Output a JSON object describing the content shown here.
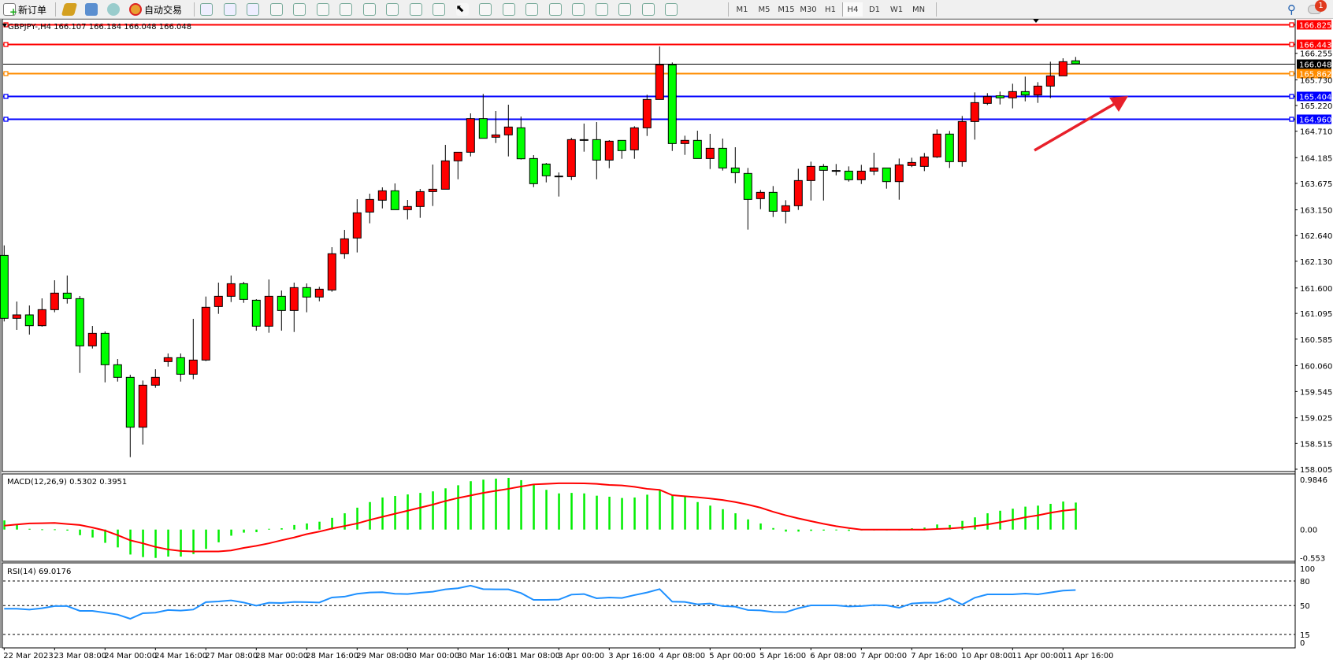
{
  "toolbar": {
    "new_order": "新订单",
    "auto_trading": "自动交易",
    "icons": [
      "new-order-icon",
      "gold-icon",
      "history-icon",
      "signals-icon",
      "auto-trading-icon",
      "bar-chart-icon",
      "candlestick-icon",
      "line-chart-icon",
      "zoom-in-icon",
      "zoom-out-icon",
      "tile-windows-icon",
      "auto-scroll-icon",
      "chart-shift-icon",
      "indicators-icon",
      "periods-icon",
      "templates-icon",
      "cursor-icon",
      "crosshair-icon",
      "vertical-line-icon",
      "horizontal-line-icon",
      "trendline-icon",
      "fibo-icon",
      "fibo-fan-icon",
      "text-icon",
      "text-label-icon",
      "arrows-icon"
    ],
    "timeframes": [
      "M1",
      "M5",
      "M15",
      "M30",
      "H1",
      "H4",
      "D1",
      "W1",
      "MN"
    ],
    "active_timeframe": "H4",
    "notification_count": "1"
  },
  "chart_header": "GBPJPY-,H4  166.107 166.184 166.048 166.048",
  "macd_label": "MACD(12,26,9) 0.5302 0.3951",
  "rsi_label": "RSI(14) 69.0176",
  "chart_data": {
    "type": "candlestick",
    "symbol": "GBPJPY-",
    "timeframe": "H4",
    "colors": {
      "bull": "#ff0000",
      "bear": "#00ff00",
      "macd_hist": "#00ee00",
      "signal": "#ff0000",
      "rsi": "#1e90ff"
    },
    "price_axis": [
      "166.255",
      "165.730",
      "165.220",
      "164.710",
      "164.185",
      "163.675",
      "163.150",
      "162.640",
      "162.130",
      "161.600",
      "161.095",
      "160.585",
      "160.060",
      "159.545",
      "159.025",
      "158.515",
      "158.005"
    ],
    "hlines": [
      {
        "price": "166.825",
        "color": "#ff0000"
      },
      {
        "price": "166.443",
        "color": "#ff0000"
      },
      {
        "price": "166.048",
        "color": "#000000"
      },
      {
        "price": "165.862",
        "color": "#ff8c00"
      },
      {
        "price": "165.404",
        "color": "#0000ff"
      },
      {
        "price": "164.960",
        "color": "#0000ff"
      }
    ],
    "time_labels": [
      "22 Mar 2023",
      "23 Mar 08:00",
      "24 Mar 00:00",
      "24 Mar 16:00",
      "27 Mar 08:00",
      "28 Mar 00:00",
      "28 Mar 16:00",
      "29 Mar 08:00",
      "30 Mar 00:00",
      "30 Mar 16:00",
      "31 Mar 08:00",
      "3 Apr 00:00",
      "3 Apr 16:00",
      "4 Apr 08:00",
      "5 Apr 00:00",
      "5 Apr 16:00",
      "6 Apr 08:00",
      "7 Apr 00:00",
      "7 Apr 16:00",
      "10 Apr 08:00",
      "11 Apr 00:00",
      "11 Apr 16:00"
    ],
    "ohlc": [
      [
        162.247,
        162.445,
        160.936,
        160.998
      ],
      [
        160.998,
        161.331,
        160.769,
        161.066
      ],
      [
        161.066,
        161.253,
        160.675,
        160.852
      ],
      [
        160.852,
        161.394,
        160.832,
        161.17
      ],
      [
        161.17,
        161.753,
        161.118,
        161.498
      ],
      [
        161.498,
        161.847,
        161.29,
        161.388
      ],
      [
        161.388,
        161.441,
        159.915,
        160.451
      ],
      [
        160.451,
        160.847,
        160.399,
        160.701
      ],
      [
        160.701,
        160.738,
        159.728,
        160.077
      ],
      [
        160.077,
        160.191,
        159.743,
        159.827
      ],
      [
        159.827,
        159.879,
        158.244,
        158.838
      ],
      [
        158.838,
        159.764,
        158.494,
        159.671
      ],
      [
        159.671,
        159.988,
        159.619,
        159.827
      ],
      [
        160.139,
        160.3,
        160.04,
        160.217
      ],
      [
        160.217,
        160.3,
        159.743,
        159.889
      ],
      [
        159.889,
        160.988,
        159.79,
        160.17
      ],
      [
        160.17,
        161.43,
        160.15,
        161.217
      ],
      [
        161.232,
        161.706,
        161.087,
        161.435
      ],
      [
        161.435,
        161.847,
        161.321,
        161.685
      ],
      [
        161.685,
        161.722,
        161.305,
        161.373
      ],
      [
        161.357,
        161.378,
        160.753,
        160.842
      ],
      [
        160.842,
        161.769,
        160.712,
        161.435
      ],
      [
        161.435,
        161.55,
        160.753,
        161.154
      ],
      [
        161.154,
        161.706,
        160.727,
        161.607
      ],
      [
        161.607,
        161.69,
        161.118,
        161.42
      ],
      [
        161.42,
        161.623,
        161.336,
        161.576
      ],
      [
        161.56,
        162.409,
        161.524,
        162.279
      ],
      [
        162.279,
        162.752,
        162.18,
        162.575
      ],
      [
        162.591,
        163.361,
        162.305,
        163.091
      ],
      [
        163.106,
        163.471,
        162.883,
        163.356
      ],
      [
        163.341,
        163.596,
        163.179,
        163.528
      ],
      [
        163.528,
        163.674,
        163.153,
        163.153
      ],
      [
        163.153,
        163.346,
        162.961,
        163.216
      ],
      [
        163.216,
        163.564,
        162.992,
        163.512
      ],
      [
        163.512,
        164.049,
        163.226,
        163.559
      ],
      [
        163.559,
        164.439,
        163.559,
        164.122
      ],
      [
        164.122,
        164.293,
        163.757,
        164.293
      ],
      [
        164.293,
        165.064,
        164.21,
        164.96
      ],
      [
        164.96,
        165.449,
        164.569,
        164.569
      ],
      [
        164.59,
        165.111,
        164.476,
        164.637
      ],
      [
        164.637,
        165.236,
        164.21,
        164.793
      ],
      [
        164.778,
        165.001,
        164.148,
        164.163
      ],
      [
        164.168,
        164.236,
        163.601,
        163.669
      ],
      [
        164.059,
        164.08,
        163.695,
        163.825
      ],
      [
        163.82,
        163.892,
        163.414,
        163.815
      ],
      [
        163.809,
        164.58,
        163.741,
        164.543
      ],
      [
        164.543,
        164.861,
        164.304,
        164.543
      ],
      [
        164.543,
        164.892,
        163.757,
        164.137
      ],
      [
        164.137,
        164.533,
        163.976,
        164.512
      ],
      [
        164.528,
        164.528,
        164.163,
        164.325
      ],
      [
        164.34,
        164.809,
        164.163,
        164.777
      ],
      [
        164.777,
        165.433,
        164.616,
        165.34
      ],
      [
        165.34,
        166.391,
        165.34,
        166.027
      ],
      [
        166.027,
        166.074,
        164.319,
        164.465
      ],
      [
        164.465,
        164.621,
        164.241,
        164.528
      ],
      [
        164.528,
        164.72,
        164.168,
        164.168
      ],
      [
        164.168,
        164.658,
        163.96,
        164.371
      ],
      [
        164.371,
        164.564,
        163.929,
        163.981
      ],
      [
        163.981,
        164.392,
        163.679,
        163.887
      ],
      [
        163.872,
        163.981,
        162.758,
        163.356
      ],
      [
        163.372,
        163.544,
        163.164,
        163.497
      ],
      [
        163.497,
        163.622,
        163.008,
        163.122
      ],
      [
        163.122,
        163.341,
        162.882,
        163.231
      ],
      [
        163.231,
        163.965,
        163.148,
        163.731
      ],
      [
        163.731,
        164.106,
        163.335,
        164.012
      ],
      [
        164.012,
        164.059,
        163.335,
        163.934
      ],
      [
        163.93,
        164.059,
        163.835,
        163.929
      ],
      [
        163.918,
        164.012,
        163.71,
        163.747
      ],
      [
        163.747,
        164.043,
        163.663,
        163.918
      ],
      [
        163.918,
        164.283,
        163.84,
        163.981
      ],
      [
        163.981,
        163.981,
        163.57,
        163.71
      ],
      [
        163.71,
        164.168,
        163.351,
        164.043
      ],
      [
        164.028,
        164.184,
        163.997,
        164.09
      ],
      [
        164.012,
        164.278,
        163.918,
        164.2
      ],
      [
        164.2,
        164.746,
        164.179,
        164.653
      ],
      [
        164.653,
        164.715,
        163.981,
        164.106
      ],
      [
        164.106,
        165.012,
        164.007,
        164.902
      ],
      [
        164.902,
        165.48,
        164.543,
        165.277
      ],
      [
        165.262,
        165.465,
        165.23,
        165.397
      ],
      [
        165.413,
        165.496,
        165.241,
        165.371
      ],
      [
        165.371,
        165.652,
        165.163,
        165.496
      ],
      [
        165.496,
        165.793,
        165.303,
        165.428
      ],
      [
        165.428,
        165.683,
        165.272,
        165.605
      ],
      [
        165.605,
        166.089,
        165.366,
        165.808
      ],
      [
        165.808,
        166.157,
        165.808,
        166.089
      ],
      [
        166.107,
        166.184,
        166.048,
        166.048
      ]
    ],
    "macd_axis": [
      "0.9846",
      "0.00",
      "-0.553"
    ],
    "macd_hist": [
      0.18,
      0.09,
      0.015,
      0.005,
      0.005,
      -0.02,
      -0.11,
      -0.155,
      -0.26,
      -0.35,
      -0.49,
      -0.54,
      -0.557,
      -0.53,
      -0.53,
      -0.48,
      -0.38,
      -0.25,
      -0.12,
      -0.06,
      -0.05,
      0.015,
      0.026,
      0.09,
      0.12,
      0.155,
      0.23,
      0.32,
      0.43,
      0.54,
      0.63,
      0.66,
      0.69,
      0.72,
      0.75,
      0.81,
      0.87,
      0.95,
      0.98,
      1.0,
      1.015,
      0.97,
      0.88,
      0.78,
      0.71,
      0.72,
      0.71,
      0.665,
      0.645,
      0.62,
      0.63,
      0.685,
      0.77,
      0.67,
      0.645,
      0.54,
      0.47,
      0.4,
      0.32,
      0.2,
      0.12,
      0.03,
      -0.04,
      -0.04,
      -0.025,
      -0.02,
      -0.005,
      -0.025,
      0.0,
      0.0,
      0.0,
      0.0,
      0.025,
      0.04,
      0.1,
      0.09,
      0.17,
      0.24,
      0.32,
      0.37,
      0.41,
      0.45,
      0.47,
      0.505,
      0.55,
      0.5302
    ],
    "macd_signal": [
      0.077,
      0.1,
      0.12,
      0.125,
      0.13,
      0.11,
      0.09,
      0.04,
      -0.02,
      -0.11,
      -0.21,
      -0.27,
      -0.34,
      -0.39,
      -0.42,
      -0.43,
      -0.43,
      -0.43,
      -0.41,
      -0.36,
      -0.32,
      -0.27,
      -0.21,
      -0.155,
      -0.09,
      -0.04,
      0.02,
      0.07,
      0.12,
      0.19,
      0.25,
      0.31,
      0.37,
      0.43,
      0.49,
      0.56,
      0.62,
      0.67,
      0.72,
      0.76,
      0.8,
      0.845,
      0.887,
      0.897,
      0.91,
      0.91,
      0.907,
      0.897,
      0.876,
      0.866,
      0.84,
      0.8,
      0.78,
      0.675,
      0.655,
      0.634,
      0.61,
      0.58,
      0.54,
      0.49,
      0.43,
      0.35,
      0.28,
      0.22,
      0.165,
      0.113,
      0.067,
      0.03,
      0.0,
      0.0,
      0.0,
      0.0,
      0.0,
      0.0,
      0.01,
      0.02,
      0.04,
      0.067,
      0.1,
      0.144,
      0.19,
      0.24,
      0.28,
      0.33,
      0.37,
      0.3951
    ],
    "rsi_axis": [
      "100",
      "80",
      "50",
      "15",
      "0"
    ],
    "rsi_levels": [
      80,
      50,
      15
    ],
    "rsi": [
      46.2,
      46.2,
      45.2,
      46.8,
      49.4,
      49.4,
      43.6,
      43.6,
      41.4,
      39.1,
      34,
      40.7,
      41.4,
      44.6,
      43.9,
      45.2,
      54.2,
      55.1,
      56.4,
      53.8,
      50,
      53.5,
      53.2,
      54.5,
      54.2,
      53.8,
      59.9,
      60.9,
      64.4,
      66,
      66.3,
      64.4,
      64.1,
      65.7,
      66.9,
      69.8,
      71.1,
      74.3,
      70.1,
      69.8,
      69.8,
      65.3,
      57,
      57,
      57.3,
      63.4,
      64.1,
      58.9,
      59.9,
      59.3,
      62.8,
      66,
      70.1,
      54.8,
      54.5,
      51.6,
      52.6,
      49.4,
      48.7,
      44.6,
      44.2,
      42.3,
      42,
      46.8,
      50.3,
      50.3,
      50.3,
      49,
      49.4,
      50.6,
      50.3,
      47.4,
      52.6,
      53.5,
      53.5,
      58.9,
      51.3,
      59.6,
      63.7,
      63.7,
      63.7,
      64.7,
      63.7,
      66,
      68.2,
      69.0176
    ]
  }
}
